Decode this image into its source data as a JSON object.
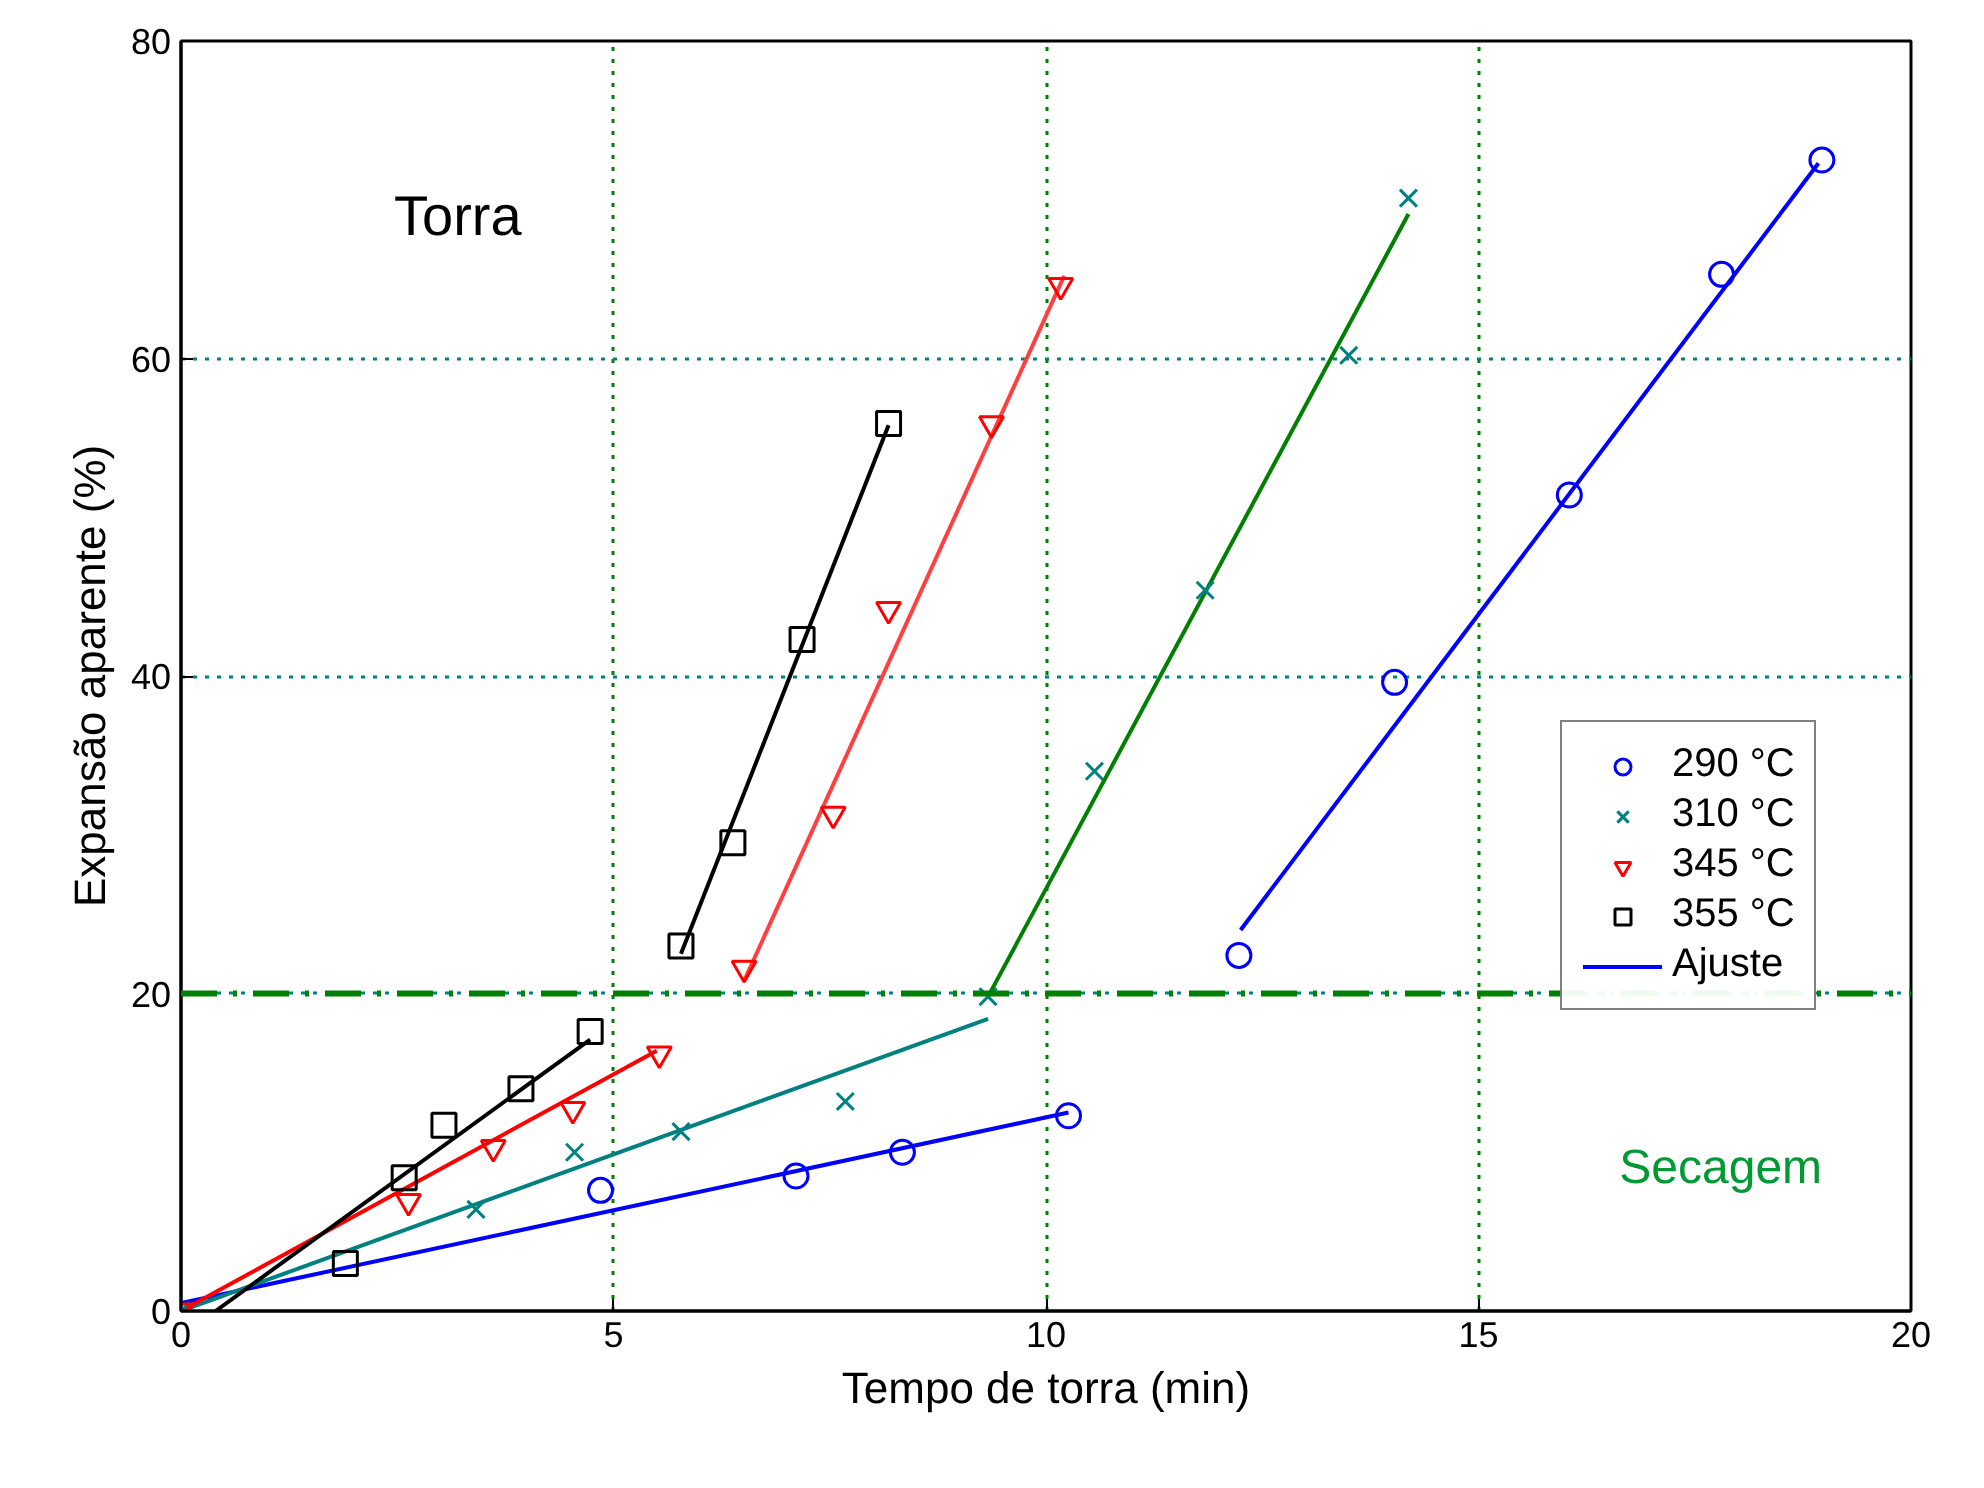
{
  "chart_data": {
    "type": "scatter",
    "xlabel": "Tempo de torra (min)",
    "ylabel": "Expansão aparente (%)",
    "xlim": [
      0,
      20
    ],
    "ylim": [
      0,
      80
    ],
    "xticks": [
      0,
      5,
      10,
      15,
      20
    ],
    "yticks": [
      0,
      20,
      40,
      60,
      80
    ],
    "grid": true,
    "legend": "right",
    "annotations": [
      "Torra",
      "Secagem"
    ],
    "ref_lines": [
      {
        "axis": "y",
        "value": 20,
        "label": null,
        "color": "#008000",
        "line_style": "dashed"
      }
    ],
    "series": [
      {
        "name": "290 °C",
        "marker": "circle",
        "color": "#0000ff",
        "x": [
          4.85,
          7.11,
          8.34,
          10.26,
          12.23,
          14.03,
          16.05,
          17.81,
          18.97
        ],
        "values": [
          7.6,
          8.5,
          10.0,
          12.3,
          22.4,
          39.6,
          51.4,
          65.3,
          72.5
        ]
      },
      {
        "name": "310 °C",
        "marker": "cross",
        "color": "#008080",
        "x": [
          0,
          3.41,
          4.55,
          5.78,
          7.68,
          9.33,
          10.56,
          11.84,
          13.5,
          14.19
        ],
        "values": [
          0,
          6.4,
          10.0,
          11.3,
          13.2,
          19.8,
          34.0,
          45.4,
          60.2,
          70.1
        ]
      },
      {
        "name": "345 °C",
        "marker": "triangle",
        "color": "#ff0000",
        "x": [
          0,
          2.63,
          3.61,
          4.53,
          5.53,
          6.51,
          7.54,
          8.18,
          9.37,
          10.17
        ],
        "values": [
          0,
          6.9,
          10.3,
          12.7,
          16.2,
          21.6,
          31.3,
          44.2,
          55.9,
          64.6
        ]
      },
      {
        "name": "355 °C",
        "marker": "square",
        "color": "#000000",
        "x": [
          1.9,
          2.58,
          3.04,
          3.93,
          4.73,
          5.78,
          6.38,
          7.18,
          8.18
        ],
        "values": [
          3.0,
          8.4,
          11.7,
          14.0,
          17.6,
          23.0,
          29.5,
          42.3,
          55.9
        ]
      },
      {
        "name": "Ajuste",
        "type": "line",
        "color": "#0000ff",
        "x": [
          0,
          10.26
        ],
        "values": [
          0.5,
          12.5
        ]
      },
      {
        "type": "line",
        "color": "#0000ff",
        "x": [
          12.25,
          18.93
        ],
        "values": [
          24.0,
          72.3
        ]
      },
      {
        "type": "line",
        "color": "#008080",
        "x": [
          0,
          9.33
        ],
        "values": [
          0,
          18.4
        ]
      },
      {
        "type": "line",
        "color": "#008000",
        "x": [
          9.33,
          14.19
        ],
        "values": [
          19.8,
          69.1
        ]
      },
      {
        "type": "line",
        "color": "#ff0000",
        "x": [
          0,
          5.5
        ],
        "values": [
          0,
          16.4
        ]
      },
      {
        "type": "line",
        "color": "#ff4040",
        "x": [
          6.51,
          10.21
        ],
        "values": [
          20.8,
          65.2
        ]
      },
      {
        "type": "line",
        "color": "#000000",
        "x": [
          0.4,
          4.73
        ],
        "values": [
          0,
          17.1
        ]
      },
      {
        "type": "line",
        "color": "#000000",
        "x": [
          5.78,
          8.18
        ],
        "values": [
          22.5,
          55.8
        ]
      }
    ]
  }
}
